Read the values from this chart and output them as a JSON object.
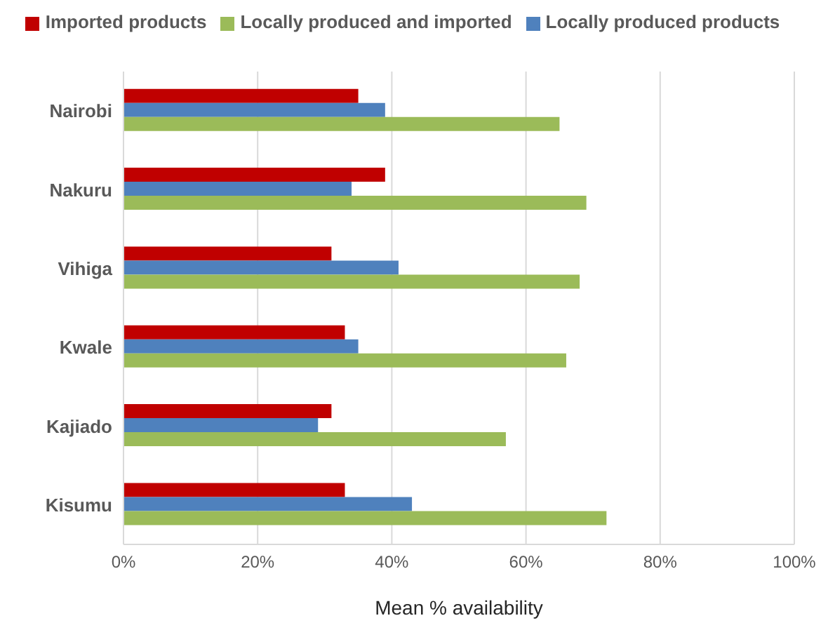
{
  "chart_data": {
    "type": "bar",
    "orientation": "horizontal",
    "xlabel": "Mean % availability",
    "categories": [
      "Nairobi",
      "Nakuru",
      "Vihiga",
      "Kwale",
      "Kajiado",
      "Kisumu"
    ],
    "series": [
      {
        "name": "Imported products",
        "color": "#c00000",
        "values": [
          35,
          39,
          31,
          33,
          31,
          33
        ]
      },
      {
        "name": "Locally produced products",
        "color": "#4f81bd",
        "values": [
          39,
          34,
          41,
          35,
          29,
          43
        ]
      },
      {
        "name": "Locally produced and imported",
        "color": "#9bbb59",
        "values": [
          65,
          69,
          68,
          66,
          57,
          72
        ]
      }
    ],
    "xlim": [
      0,
      100
    ],
    "xticks": [
      {
        "value": 0,
        "label": "0%"
      },
      {
        "value": 20,
        "label": "20%"
      },
      {
        "value": 40,
        "label": "40%"
      },
      {
        "value": 60,
        "label": "60%"
      },
      {
        "value": 80,
        "label": "80%"
      },
      {
        "value": 100,
        "label": "100%"
      }
    ],
    "grid": "x",
    "legend": "top"
  }
}
